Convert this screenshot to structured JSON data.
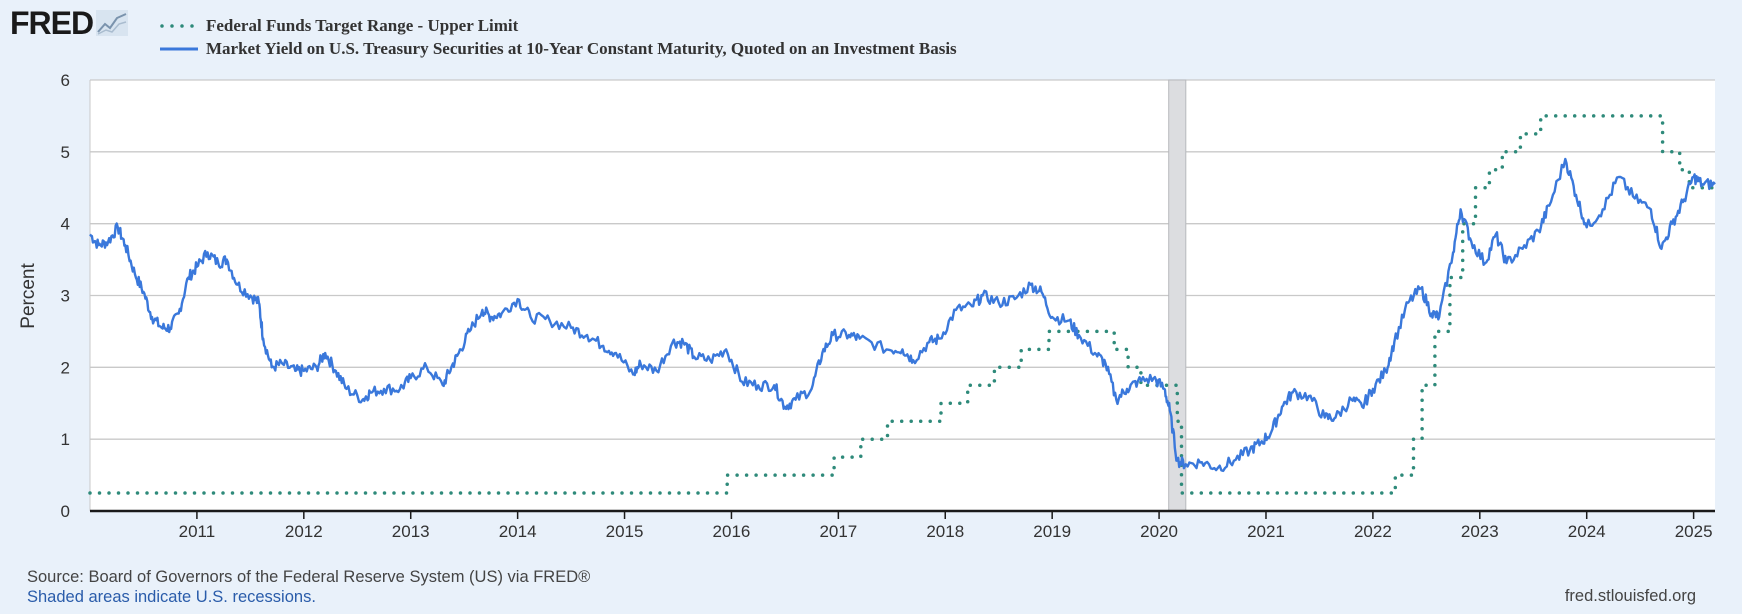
{
  "logo": {
    "text": "FRED",
    "icon": "fred-chart-icon"
  },
  "chart_data": {
    "type": "line",
    "xlabel": "",
    "ylabel": "Percent",
    "xlim": [
      2010.0,
      2025.2
    ],
    "ylim": [
      0,
      6
    ],
    "yticks": [
      0,
      1,
      2,
      3,
      4,
      5,
      6
    ],
    "xticks": [
      {
        "value": 2011,
        "label": "2011"
      },
      {
        "value": 2012,
        "label": "2012"
      },
      {
        "value": 2013,
        "label": "2013"
      },
      {
        "value": 2014,
        "label": "2014"
      },
      {
        "value": 2015,
        "label": "2015"
      },
      {
        "value": 2016,
        "label": "2016"
      },
      {
        "value": 2017,
        "label": "2017"
      },
      {
        "value": 2018,
        "label": "2018"
      },
      {
        "value": 2019,
        "label": "2019"
      },
      {
        "value": 2020,
        "label": "2020"
      },
      {
        "value": 2021,
        "label": "2021"
      },
      {
        "value": 2022,
        "label": "2022"
      },
      {
        "value": 2023,
        "label": "2023"
      },
      {
        "value": 2024,
        "label": "2024"
      },
      {
        "value": 2025,
        "label": "2025"
      }
    ],
    "grid": true,
    "recessions": [
      {
        "start": 2020.09,
        "end": 2020.25
      }
    ],
    "series": [
      {
        "name": "Federal Funds Target Range - Upper Limit",
        "style": "dotted",
        "color": "#2e8a7a",
        "step": true,
        "points": [
          [
            2010.0,
            0.25
          ],
          [
            2015.96,
            0.5
          ],
          [
            2016.96,
            0.75
          ],
          [
            2017.21,
            1.0
          ],
          [
            2017.46,
            1.25
          ],
          [
            2017.96,
            1.5
          ],
          [
            2018.21,
            1.75
          ],
          [
            2018.46,
            2.0
          ],
          [
            2018.71,
            2.25
          ],
          [
            2018.97,
            2.5
          ],
          [
            2019.58,
            2.25
          ],
          [
            2019.71,
            2.0
          ],
          [
            2019.83,
            1.75
          ],
          [
            2020.17,
            1.25
          ],
          [
            2020.21,
            0.25
          ],
          [
            2022.21,
            0.5
          ],
          [
            2022.38,
            1.0
          ],
          [
            2022.46,
            1.75
          ],
          [
            2022.58,
            2.5
          ],
          [
            2022.72,
            3.25
          ],
          [
            2022.84,
            4.0
          ],
          [
            2022.96,
            4.5
          ],
          [
            2023.09,
            4.75
          ],
          [
            2023.21,
            5.0
          ],
          [
            2023.38,
            5.25
          ],
          [
            2023.57,
            5.5
          ],
          [
            2024.71,
            5.0
          ],
          [
            2024.87,
            4.75
          ],
          [
            2024.96,
            4.5
          ],
          [
            2025.2,
            4.5
          ]
        ]
      },
      {
        "name": "Market Yield on U.S. Treasury Securities at 10-Year Constant Maturity, Quoted on an Investment Basis",
        "style": "solid",
        "color": "#3a78db",
        "step": false,
        "points": [
          [
            2010.0,
            3.85
          ],
          [
            2010.08,
            3.7
          ],
          [
            2010.17,
            3.75
          ],
          [
            2010.26,
            3.95
          ],
          [
            2010.33,
            3.7
          ],
          [
            2010.42,
            3.3
          ],
          [
            2010.5,
            3.05
          ],
          [
            2010.58,
            2.7
          ],
          [
            2010.67,
            2.55
          ],
          [
            2010.75,
            2.55
          ],
          [
            2010.83,
            2.75
          ],
          [
            2010.92,
            3.25
          ],
          [
            2011.0,
            3.4
          ],
          [
            2011.1,
            3.6
          ],
          [
            2011.2,
            3.45
          ],
          [
            2011.28,
            3.5
          ],
          [
            2011.38,
            3.15
          ],
          [
            2011.5,
            3.0
          ],
          [
            2011.58,
            2.9
          ],
          [
            2011.62,
            2.4
          ],
          [
            2011.7,
            2.0
          ],
          [
            2011.8,
            2.05
          ],
          [
            2011.92,
            1.95
          ],
          [
            2012.0,
            1.95
          ],
          [
            2012.12,
            2.0
          ],
          [
            2012.2,
            2.2
          ],
          [
            2012.3,
            1.95
          ],
          [
            2012.4,
            1.7
          ],
          [
            2012.55,
            1.55
          ],
          [
            2012.62,
            1.65
          ],
          [
            2012.75,
            1.7
          ],
          [
            2012.9,
            1.7
          ],
          [
            2013.0,
            1.85
          ],
          [
            2013.15,
            2.0
          ],
          [
            2013.3,
            1.75
          ],
          [
            2013.38,
            2.0
          ],
          [
            2013.45,
            2.2
          ],
          [
            2013.55,
            2.5
          ],
          [
            2013.67,
            2.8
          ],
          [
            2013.75,
            2.7
          ],
          [
            2013.85,
            2.75
          ],
          [
            2014.0,
            2.95
          ],
          [
            2014.12,
            2.7
          ],
          [
            2014.3,
            2.65
          ],
          [
            2014.5,
            2.55
          ],
          [
            2014.65,
            2.45
          ],
          [
            2014.8,
            2.3
          ],
          [
            2014.92,
            2.2
          ],
          [
            2015.08,
            1.9
          ],
          [
            2015.15,
            2.05
          ],
          [
            2015.3,
            1.95
          ],
          [
            2015.45,
            2.35
          ],
          [
            2015.55,
            2.35
          ],
          [
            2015.65,
            2.15
          ],
          [
            2015.8,
            2.1
          ],
          [
            2015.95,
            2.25
          ],
          [
            2016.1,
            1.8
          ],
          [
            2016.25,
            1.75
          ],
          [
            2016.4,
            1.75
          ],
          [
            2016.5,
            1.45
          ],
          [
            2016.6,
            1.55
          ],
          [
            2016.75,
            1.7
          ],
          [
            2016.85,
            2.2
          ],
          [
            2016.95,
            2.45
          ],
          [
            2017.1,
            2.45
          ],
          [
            2017.2,
            2.4
          ],
          [
            2017.45,
            2.25
          ],
          [
            2017.6,
            2.25
          ],
          [
            2017.7,
            2.1
          ],
          [
            2017.85,
            2.35
          ],
          [
            2017.95,
            2.4
          ],
          [
            2018.1,
            2.8
          ],
          [
            2018.25,
            2.85
          ],
          [
            2018.35,
            3.0
          ],
          [
            2018.5,
            2.9
          ],
          [
            2018.65,
            2.95
          ],
          [
            2018.8,
            3.15
          ],
          [
            2018.9,
            3.05
          ],
          [
            2019.0,
            2.7
          ],
          [
            2019.15,
            2.65
          ],
          [
            2019.25,
            2.45
          ],
          [
            2019.4,
            2.2
          ],
          [
            2019.5,
            2.05
          ],
          [
            2019.6,
            1.55
          ],
          [
            2019.7,
            1.7
          ],
          [
            2019.8,
            1.8
          ],
          [
            2019.95,
            1.85
          ],
          [
            2020.05,
            1.7
          ],
          [
            2020.1,
            1.4
          ],
          [
            2020.17,
            0.7
          ],
          [
            2020.25,
            0.65
          ],
          [
            2020.4,
            0.68
          ],
          [
            2020.55,
            0.6
          ],
          [
            2020.7,
            0.7
          ],
          [
            2020.85,
            0.85
          ],
          [
            2020.95,
            0.95
          ],
          [
            2021.05,
            1.1
          ],
          [
            2021.15,
            1.45
          ],
          [
            2021.25,
            1.65
          ],
          [
            2021.4,
            1.6
          ],
          [
            2021.55,
            1.3
          ],
          [
            2021.65,
            1.3
          ],
          [
            2021.8,
            1.55
          ],
          [
            2021.9,
            1.45
          ],
          [
            2022.0,
            1.7
          ],
          [
            2022.12,
            1.95
          ],
          [
            2022.2,
            2.35
          ],
          [
            2022.33,
            2.9
          ],
          [
            2022.45,
            3.1
          ],
          [
            2022.55,
            2.75
          ],
          [
            2022.62,
            2.7
          ],
          [
            2022.75,
            3.6
          ],
          [
            2022.82,
            4.2
          ],
          [
            2022.92,
            3.75
          ],
          [
            2023.05,
            3.45
          ],
          [
            2023.15,
            3.85
          ],
          [
            2023.25,
            3.45
          ],
          [
            2023.4,
            3.65
          ],
          [
            2023.55,
            3.9
          ],
          [
            2023.65,
            4.25
          ],
          [
            2023.8,
            4.9
          ],
          [
            2023.9,
            4.4
          ],
          [
            2024.0,
            3.95
          ],
          [
            2024.15,
            4.2
          ],
          [
            2024.3,
            4.65
          ],
          [
            2024.45,
            4.35
          ],
          [
            2024.6,
            4.2
          ],
          [
            2024.7,
            3.65
          ],
          [
            2024.8,
            4.0
          ],
          [
            2024.9,
            4.3
          ],
          [
            2025.0,
            4.65
          ],
          [
            2025.08,
            4.55
          ],
          [
            2025.2,
            4.55
          ]
        ]
      }
    ]
  },
  "footer": {
    "source": "Source: Board of Governors of the Federal Reserve System (US) via FRED®",
    "recessions_note": "Shaded areas indicate U.S. recessions.",
    "site": "fred.stlouisfed.org"
  }
}
